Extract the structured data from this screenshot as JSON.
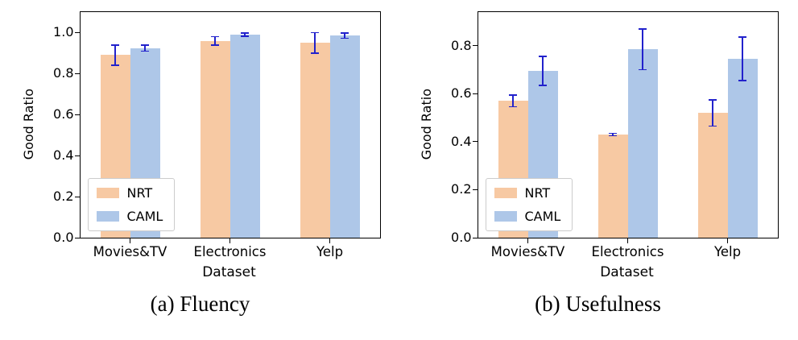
{
  "chart_data": [
    {
      "type": "bar",
      "caption": "(a) Fluency",
      "xlabel": "Dataset",
      "ylabel": "Good Ratio",
      "categories": [
        "Movies&TV",
        "Electronics",
        "Yelp"
      ],
      "series": [
        {
          "name": "NRT",
          "color": "#f7c9a3",
          "values": [
            0.89,
            0.96,
            0.95
          ],
          "errors": [
            0.05,
            0.02,
            0.05
          ]
        },
        {
          "name": "CAML",
          "color": "#aec7e8",
          "values": [
            0.925,
            0.99,
            0.985
          ],
          "errors": [
            0.015,
            0.008,
            0.013
          ]
        }
      ],
      "ylim": [
        0,
        1.1
      ],
      "yticks": [
        "0.0",
        "0.2",
        "0.4",
        "0.6",
        "0.8",
        "1.0"
      ],
      "legend": {
        "position": "lower left",
        "entries": [
          "NRT",
          "CAML"
        ]
      },
      "error_color": "#2222cc",
      "grid": false
    },
    {
      "type": "bar",
      "caption": "(b) Usefulness",
      "xlabel": "Dataset",
      "ylabel": "Good Ratio",
      "categories": [
        "Movies&TV",
        "Electronics",
        "Yelp"
      ],
      "series": [
        {
          "name": "NRT",
          "color": "#f7c9a3",
          "values": [
            0.57,
            0.43,
            0.52
          ],
          "errors": [
            0.025,
            0.005,
            0.055
          ]
        },
        {
          "name": "CAML",
          "color": "#aec7e8",
          "values": [
            0.695,
            0.785,
            0.745
          ],
          "errors": [
            0.06,
            0.085,
            0.09
          ]
        }
      ],
      "ylim": [
        0,
        0.94
      ],
      "yticks": [
        "0.0",
        "0.2",
        "0.4",
        "0.6",
        "0.8"
      ],
      "legend": {
        "position": "lower left",
        "entries": [
          "NRT",
          "CAML"
        ]
      },
      "error_color": "#2222cc",
      "grid": false
    }
  ]
}
